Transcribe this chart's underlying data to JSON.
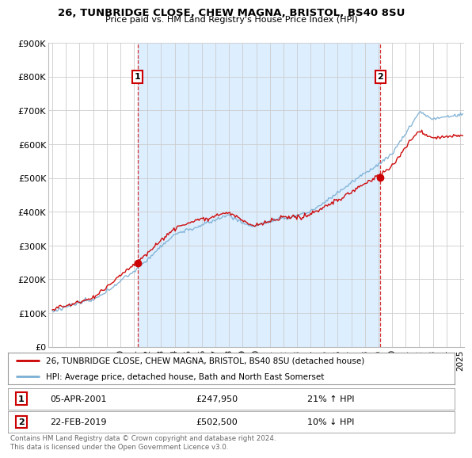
{
  "title_line1": "26, TUNBRIDGE CLOSE, CHEW MAGNA, BRISTOL, BS40 8SU",
  "title_line2": "Price paid vs. HM Land Registry's House Price Index (HPI)",
  "ylabel_ticks": [
    "£0",
    "£100K",
    "£200K",
    "£300K",
    "£400K",
    "£500K",
    "£600K",
    "£700K",
    "£800K",
    "£900K"
  ],
  "ylim": [
    0,
    900000
  ],
  "xlim_start": 1994.7,
  "xlim_end": 2025.3,
  "transaction1_x": 2001.27,
  "transaction1_y": 247950,
  "transaction2_x": 2019.15,
  "transaction2_y": 502500,
  "legend_line1": "26, TUNBRIDGE CLOSE, CHEW MAGNA, BRISTOL, BS40 8SU (detached house)",
  "legend_line2": "HPI: Average price, detached house, Bath and North East Somerset",
  "footnote": "Contains HM Land Registry data © Crown copyright and database right 2024.\nThis data is licensed under the Open Government Licence v3.0.",
  "red_color": "#cc0000",
  "blue_color": "#7bafd4",
  "bg_color": "#ffffff",
  "fill_color": "#ddeeff",
  "grid_color": "#cccccc"
}
